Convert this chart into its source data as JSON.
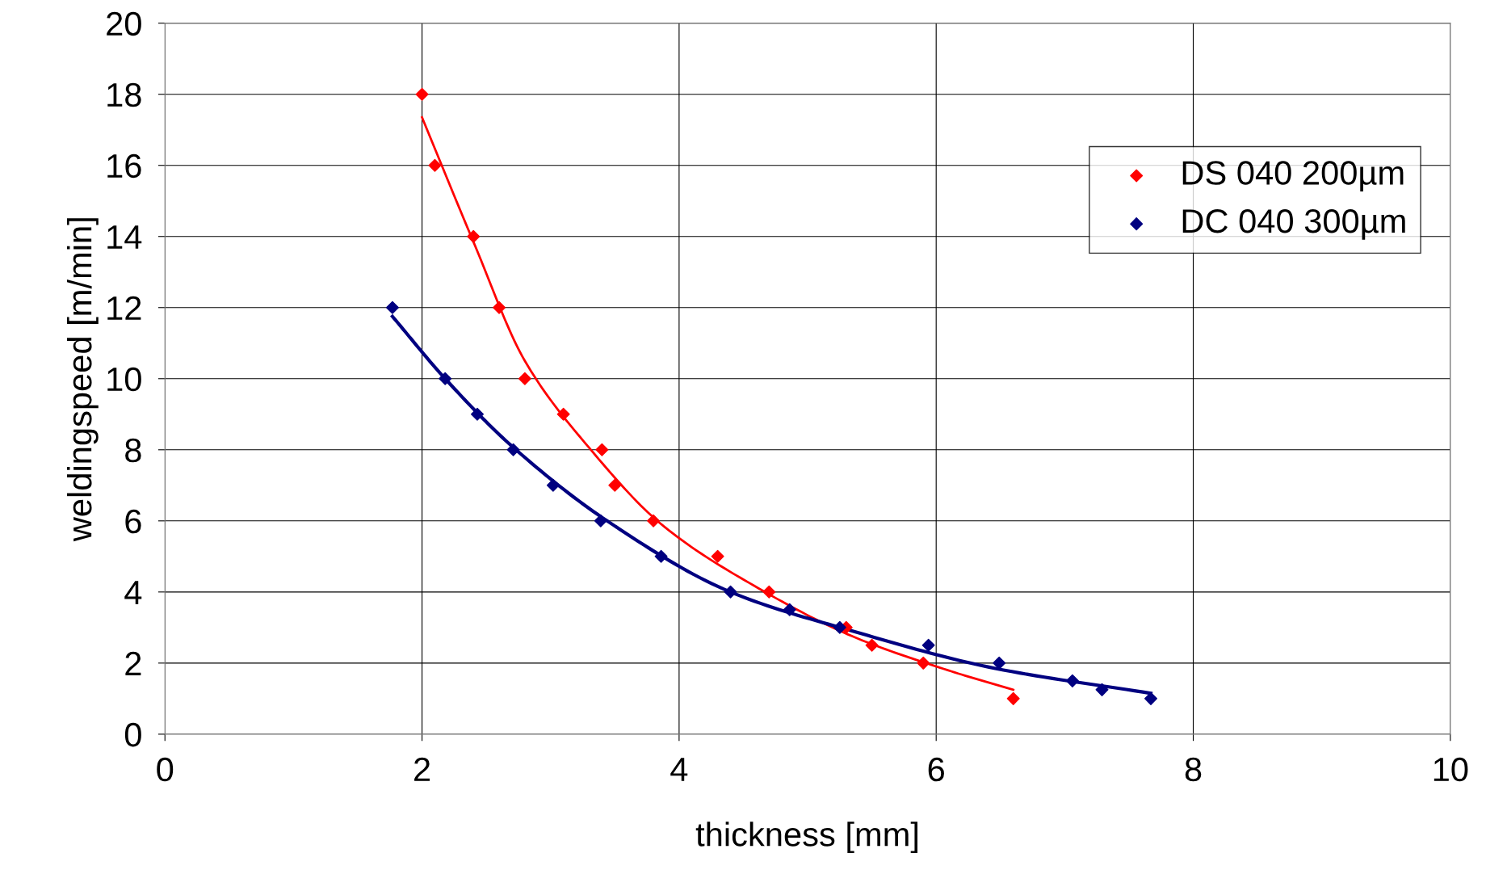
{
  "chart_data": {
    "type": "scatter",
    "xlabel": "thickness [mm]",
    "ylabel": "weldingspeed [m/min]",
    "xlim": [
      0,
      10
    ],
    "xticks": [
      0,
      2,
      4,
      6,
      8,
      10
    ],
    "ylim": [
      0,
      20
    ],
    "yticks": [
      0,
      2,
      4,
      6,
      8,
      10,
      12,
      14,
      16,
      18,
      20
    ],
    "grid": true,
    "legend": "top right",
    "marker": "diamond",
    "series": [
      {
        "name": "DS 040 200µm",
        "color": "#ff0000",
        "x": [
          2.0,
          2.1,
          2.4,
          2.6,
          2.8,
          3.1,
          3.4,
          3.5,
          3.8,
          4.3,
          4.7,
          5.3,
          5.5,
          5.9,
          6.6
        ],
        "values": [
          18,
          16,
          14,
          12,
          10,
          9,
          8,
          7,
          6,
          5,
          4,
          3,
          2.5,
          2,
          1
        ]
      },
      {
        "name": "DC 040 300µm",
        "color": "#000080",
        "x": [
          1.77,
          2.18,
          2.43,
          2.71,
          3.02,
          3.39,
          3.86,
          4.4,
          4.86,
          5.25,
          5.94,
          6.49,
          7.06,
          7.29,
          7.67
        ],
        "values": [
          12,
          10,
          9,
          8,
          7,
          6,
          5,
          4,
          3.5,
          3,
          2.5,
          2,
          1.5,
          1.25,
          1
        ]
      },
      {
        "type": "line",
        "marker": "none",
        "color": "#ff0000",
        "x": [
          2.0,
          2.4,
          2.8,
          3.29,
          3.88,
          4.62,
          5.35,
          6.09,
          6.6
        ],
        "values": [
          17.35,
          13.85,
          10.5,
          8.1,
          5.85,
          4.1,
          2.75,
          1.8,
          1.25
        ]
      },
      {
        "type": "line",
        "marker": "none",
        "color": "#000080",
        "x": [
          1.77,
          2.18,
          2.7,
          3.44,
          4.4,
          5.35,
          6.46,
          7.67
        ],
        "values": [
          11.75,
          10,
          8.1,
          6,
          4,
          2.9,
          1.85,
          1.15
        ]
      }
    ]
  }
}
